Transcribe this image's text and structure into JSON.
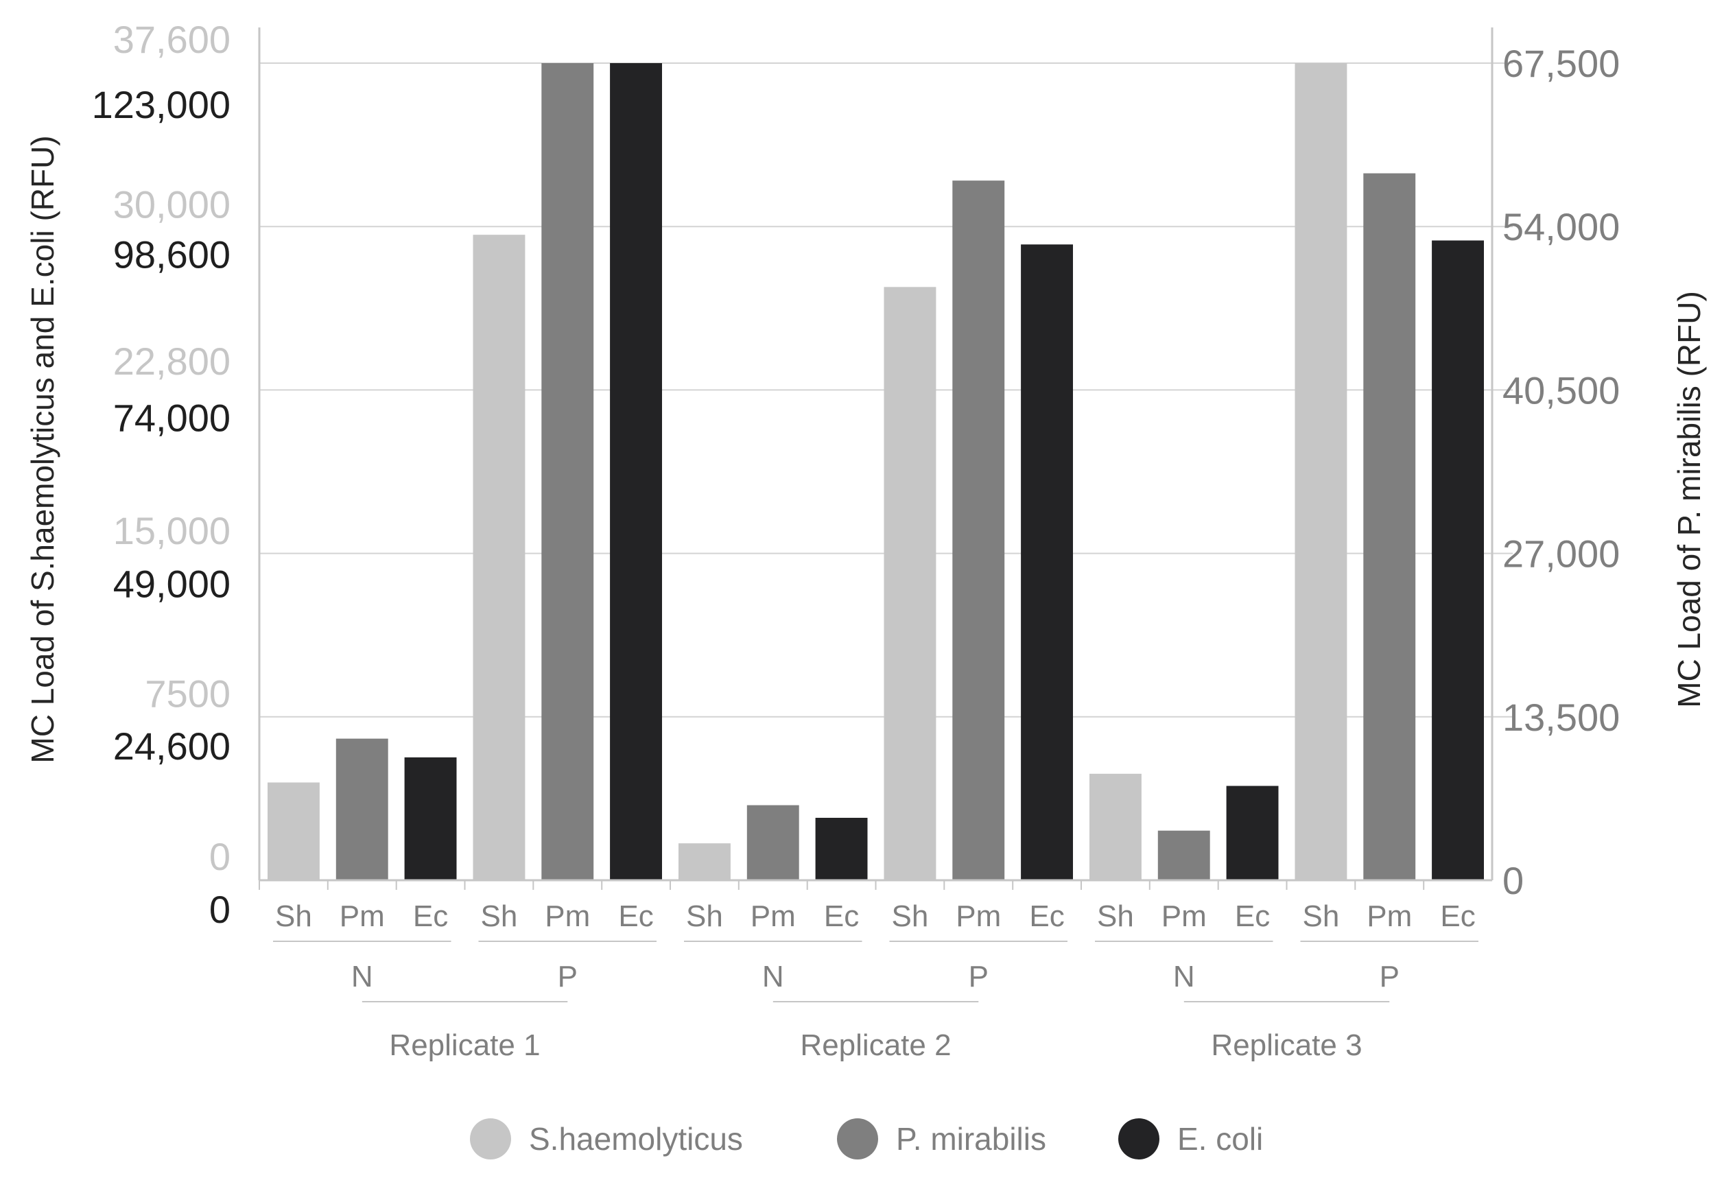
{
  "chart_data": {
    "type": "bar",
    "title": "",
    "ylabel_left": "MC Load of S.haemolyticus and E.coli (RFU)",
    "ylabel_right": "MC Load of P. mirabilis (RFU)",
    "grid": true,
    "legend_position": "bottom",
    "axes": {
      "left_outer": {
        "label_color": "#c6c6c6",
        "range": [
          0,
          37600
        ],
        "ticks": [
          {
            "value": 0,
            "label": "0"
          },
          {
            "value": 7500,
            "label": "7500"
          },
          {
            "value": 15000,
            "label": "15,000"
          },
          {
            "value": 22800,
            "label": "22,800"
          },
          {
            "value": 30000,
            "label": "30,000"
          },
          {
            "value": 37600,
            "label": "37,600"
          }
        ]
      },
      "left_inner": {
        "label_color": "#1f1f1f",
        "range": [
          0,
          123000
        ],
        "ticks": [
          {
            "value": 0,
            "label": "0"
          },
          {
            "value": 24600,
            "label": "24,600"
          },
          {
            "value": 49000,
            "label": "49,000"
          },
          {
            "value": 74000,
            "label": "74,000"
          },
          {
            "value": 98600,
            "label": "98,600"
          },
          {
            "value": 123000,
            "label": "123,000"
          }
        ]
      },
      "right": {
        "label_color": "#7f7f7f",
        "range": [
          0,
          67500
        ],
        "ticks": [
          {
            "value": 0,
            "label": "0"
          },
          {
            "value": 13500,
            "label": "13,500"
          },
          {
            "value": 27000,
            "label": "27,000"
          },
          {
            "value": 40500,
            "label": "40,500"
          },
          {
            "value": 54000,
            "label": "54,000"
          },
          {
            "value": 67500,
            "label": "67,500"
          }
        ]
      }
    },
    "groups": [
      {
        "replicate": "Replicate 1",
        "conditions": [
          {
            "label": "N",
            "bars": [
              {
                "label": "Sh",
                "series": "S.haemolyticus",
                "value": 4500
              },
              {
                "label": "Pm",
                "series": "P. mirabilis",
                "value": 11700
              },
              {
                "label": "Ec",
                "series": "E. coli",
                "value": 18500
              }
            ]
          },
          {
            "label": "P",
            "bars": [
              {
                "label": "Sh",
                "series": "S.haemolyticus",
                "value": 29700
              },
              {
                "label": "Pm",
                "series": "P. mirabilis",
                "value": 67500
              },
              {
                "label": "Ec",
                "series": "E. coli",
                "value": 123000
              }
            ]
          }
        ]
      },
      {
        "replicate": "Replicate 2",
        "conditions": [
          {
            "label": "N",
            "bars": [
              {
                "label": "Sh",
                "series": "S.haemolyticus",
                "value": 1700
              },
              {
                "label": "Pm",
                "series": "P. mirabilis",
                "value": 6200
              },
              {
                "label": "Ec",
                "series": "E. coli",
                "value": 9400
              }
            ]
          },
          {
            "label": "P",
            "bars": [
              {
                "label": "Sh",
                "series": "S.haemolyticus",
                "value": 27300
              },
              {
                "label": "Pm",
                "series": "P. mirabilis",
                "value": 57800
              },
              {
                "label": "Ec",
                "series": "E. coli",
                "value": 95700
              }
            ]
          }
        ]
      },
      {
        "replicate": "Replicate 3",
        "conditions": [
          {
            "label": "N",
            "bars": [
              {
                "label": "Sh",
                "series": "S.haemolyticus",
                "value": 4900
              },
              {
                "label": "Pm",
                "series": "P. mirabilis",
                "value": 4100
              },
              {
                "label": "Ec",
                "series": "E. coli",
                "value": 14200
              }
            ]
          },
          {
            "label": "P",
            "bars": [
              {
                "label": "Sh",
                "series": "S.haemolyticus",
                "value": 37600
              },
              {
                "label": "Pm",
                "series": "P. mirabilis",
                "value": 58400
              },
              {
                "label": "Ec",
                "series": "E. coli",
                "value": 96300
              }
            ]
          }
        ]
      }
    ],
    "series": [
      {
        "name": "S.haemolyticus",
        "abbr": "Sh",
        "axis": "left_outer",
        "color": "#c6c6c6"
      },
      {
        "name": "P. mirabilis",
        "abbr": "Pm",
        "axis": "right",
        "color": "#7f7f7f"
      },
      {
        "name": "E. coli",
        "abbr": "Ec",
        "axis": "left_inner",
        "color": "#232325"
      }
    ]
  }
}
